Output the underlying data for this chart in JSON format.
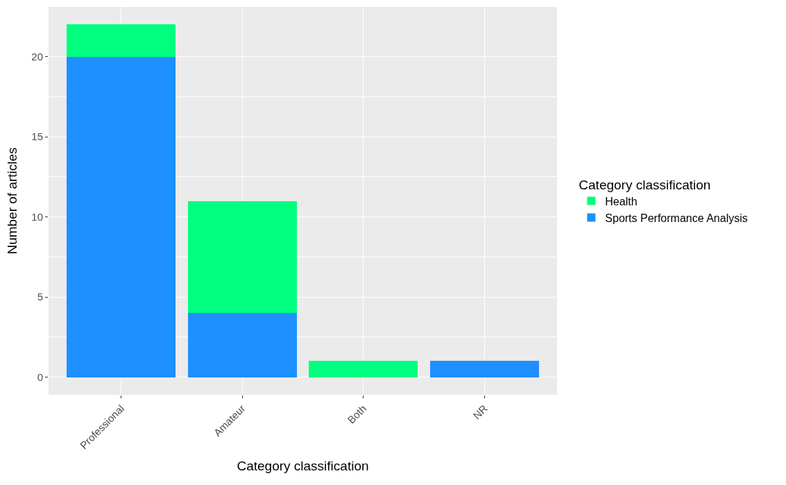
{
  "chart_data": {
    "type": "bar",
    "stacked": true,
    "xlabel": "Category classification",
    "ylabel": "Number of articles",
    "legend_title": "Category classification",
    "categories": [
      "Professional",
      "Amateur",
      "Both",
      "NR"
    ],
    "series": [
      {
        "name": "Sports Performance Analysis",
        "color": "#1e90ff",
        "values": [
          20,
          4,
          0,
          1
        ]
      },
      {
        "name": "Health",
        "color": "#00ff7f",
        "values": [
          2,
          7,
          1,
          0
        ]
      }
    ],
    "ylim": [
      -1.1,
      23.1
    ],
    "yticks": [
      0,
      5,
      10,
      15,
      20
    ],
    "grid": true,
    "legend": "right"
  }
}
